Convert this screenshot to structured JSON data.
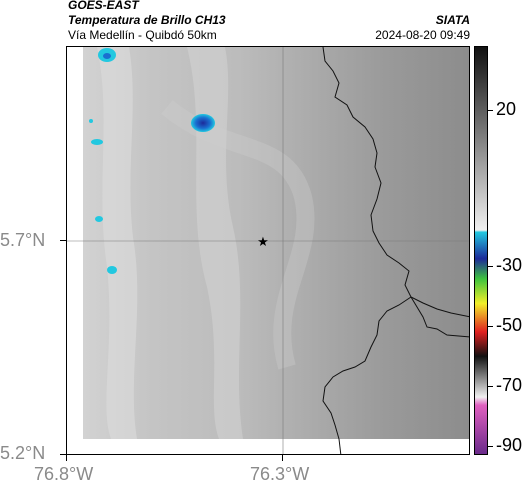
{
  "header": {
    "satellite": "GOES-EAST",
    "product": "Temperatura de Brillo CH13",
    "route": "Vía Medellín - Quibdó 50km",
    "agency": "SIATA",
    "datetime": "2024-08-20 09:49"
  },
  "map": {
    "lat_labels": [
      "5.7°N",
      "5.2°N"
    ],
    "lon_labels": [
      "76.8°W",
      "76.3°W"
    ],
    "marker_icon": "star-icon"
  },
  "colorbar": {
    "tick_labels": [
      "20",
      "-30",
      "-50",
      "-70",
      "-90"
    ],
    "colors": {
      "cyan": "#22c8e0",
      "blue": "#1c2a9a",
      "green": "#3ec43e",
      "yellow": "#f2ef2a",
      "red": "#e02020",
      "magenta": "#b040b0"
    }
  }
}
